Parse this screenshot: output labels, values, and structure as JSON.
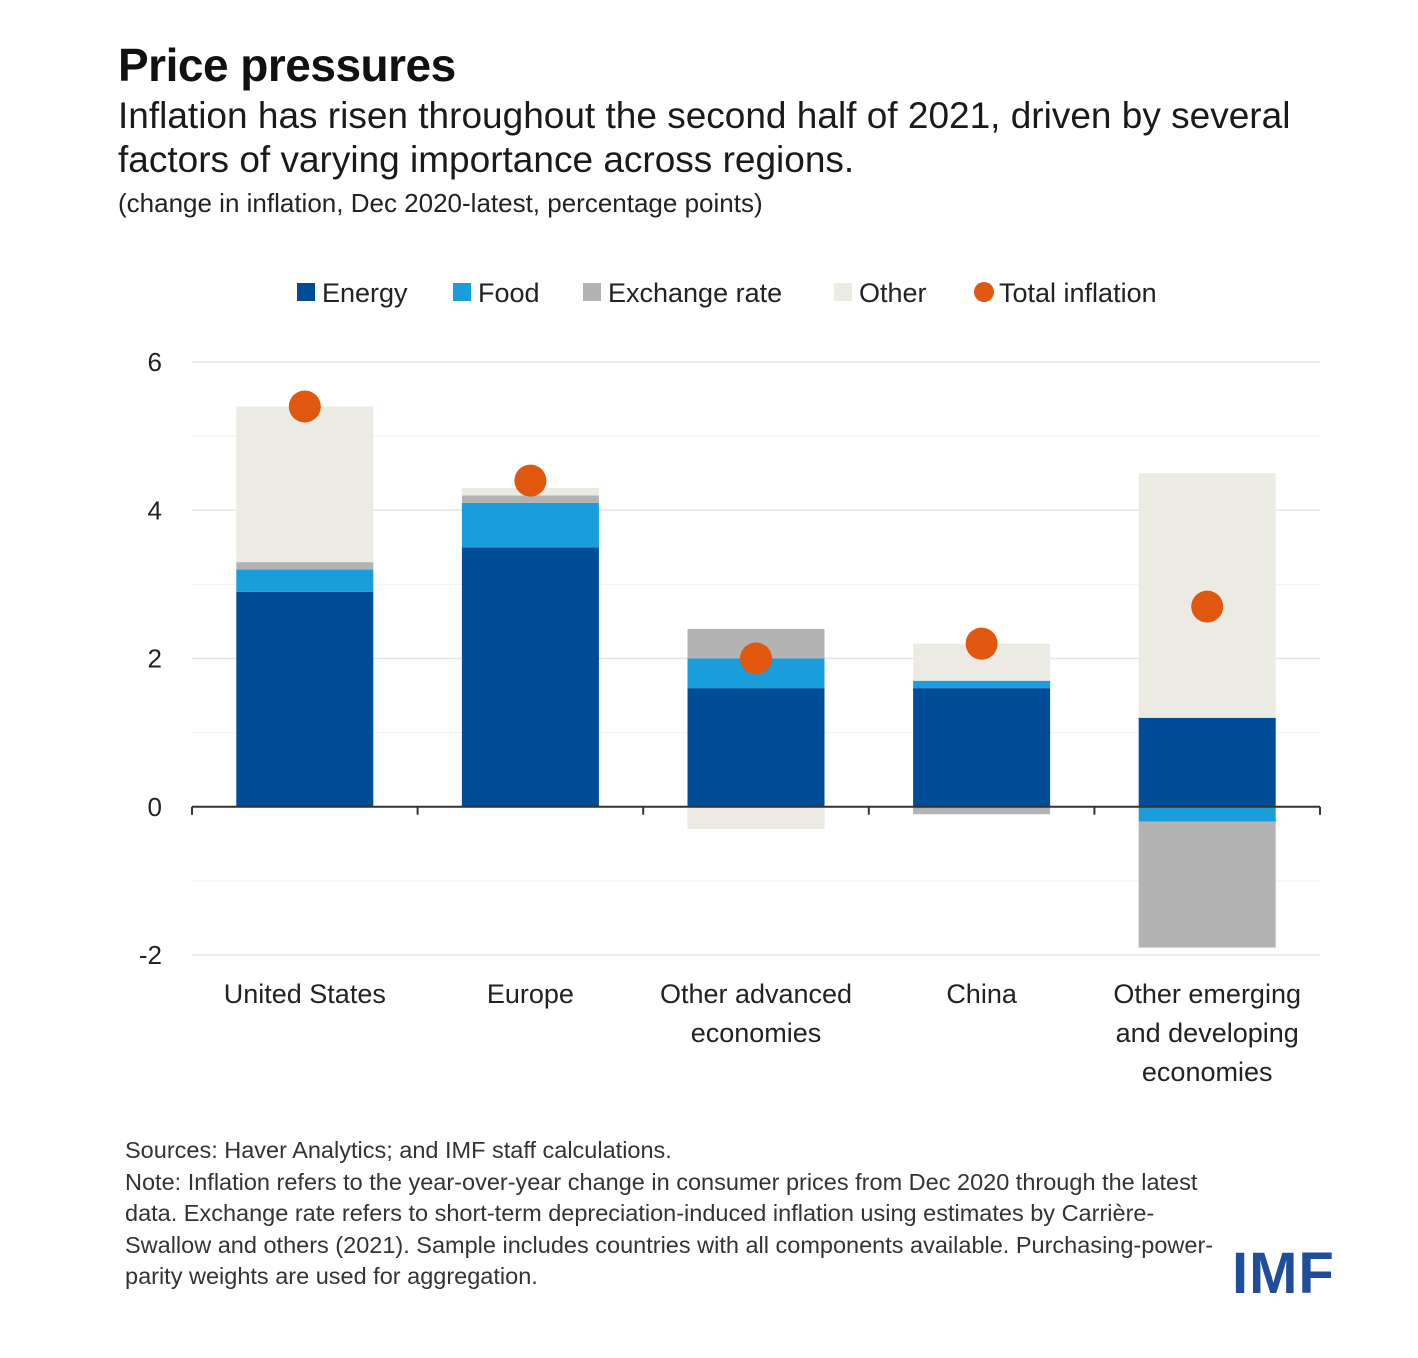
{
  "header": {
    "title": "Price pressures",
    "subtitle": "Inflation has risen throughout the second half of 2021, driven by several factors of varying importance across regions.",
    "units": "(change in inflation, Dec 2020-latest, percentage points)"
  },
  "chart_data": {
    "type": "bar",
    "stacked": true,
    "categories": [
      [
        "United States"
      ],
      [
        "Europe"
      ],
      [
        "Other advanced",
        "economies"
      ],
      [
        "China"
      ],
      [
        "Other emerging",
        "and developing",
        "economies"
      ]
    ],
    "series": [
      {
        "name": "Energy",
        "color": "#004c97",
        "values": [
          2.9,
          3.5,
          1.6,
          1.6,
          1.2
        ]
      },
      {
        "name": "Food",
        "color": "#1a9ddb",
        "values": [
          0.3,
          0.6,
          0.4,
          0.1,
          -0.2
        ]
      },
      {
        "name": "Exchange rate",
        "color": "#b3b3b3",
        "values": [
          0.1,
          0.1,
          0.4,
          -0.1,
          -1.7
        ]
      },
      {
        "name": "Other",
        "color": "#ecebe3",
        "values": [
          2.1,
          0.1,
          -0.3,
          0.5,
          3.3
        ]
      }
    ],
    "total": {
      "name": "Total inflation",
      "color": "#e0570f",
      "values": [
        5.4,
        4.4,
        2.0,
        2.2,
        2.7
      ]
    },
    "ylim": [
      -2,
      6
    ],
    "yticks": [
      -2,
      0,
      2,
      4,
      6
    ],
    "grid": true,
    "legend_position": "top"
  },
  "footer": {
    "sources": "Sources: Haver Analytics; and IMF staff calculations.",
    "note": "Note: Inflation refers to the year-over-year change in consumer prices from Dec 2020 through the latest data. Exchange rate refers to short-term depreciation-induced inflation using estimates by Carrière-Swallow and others (2021). Sample includes countries with all components available. Purchasing-power-parity weights are used for aggregation.",
    "logo": "IMF"
  }
}
